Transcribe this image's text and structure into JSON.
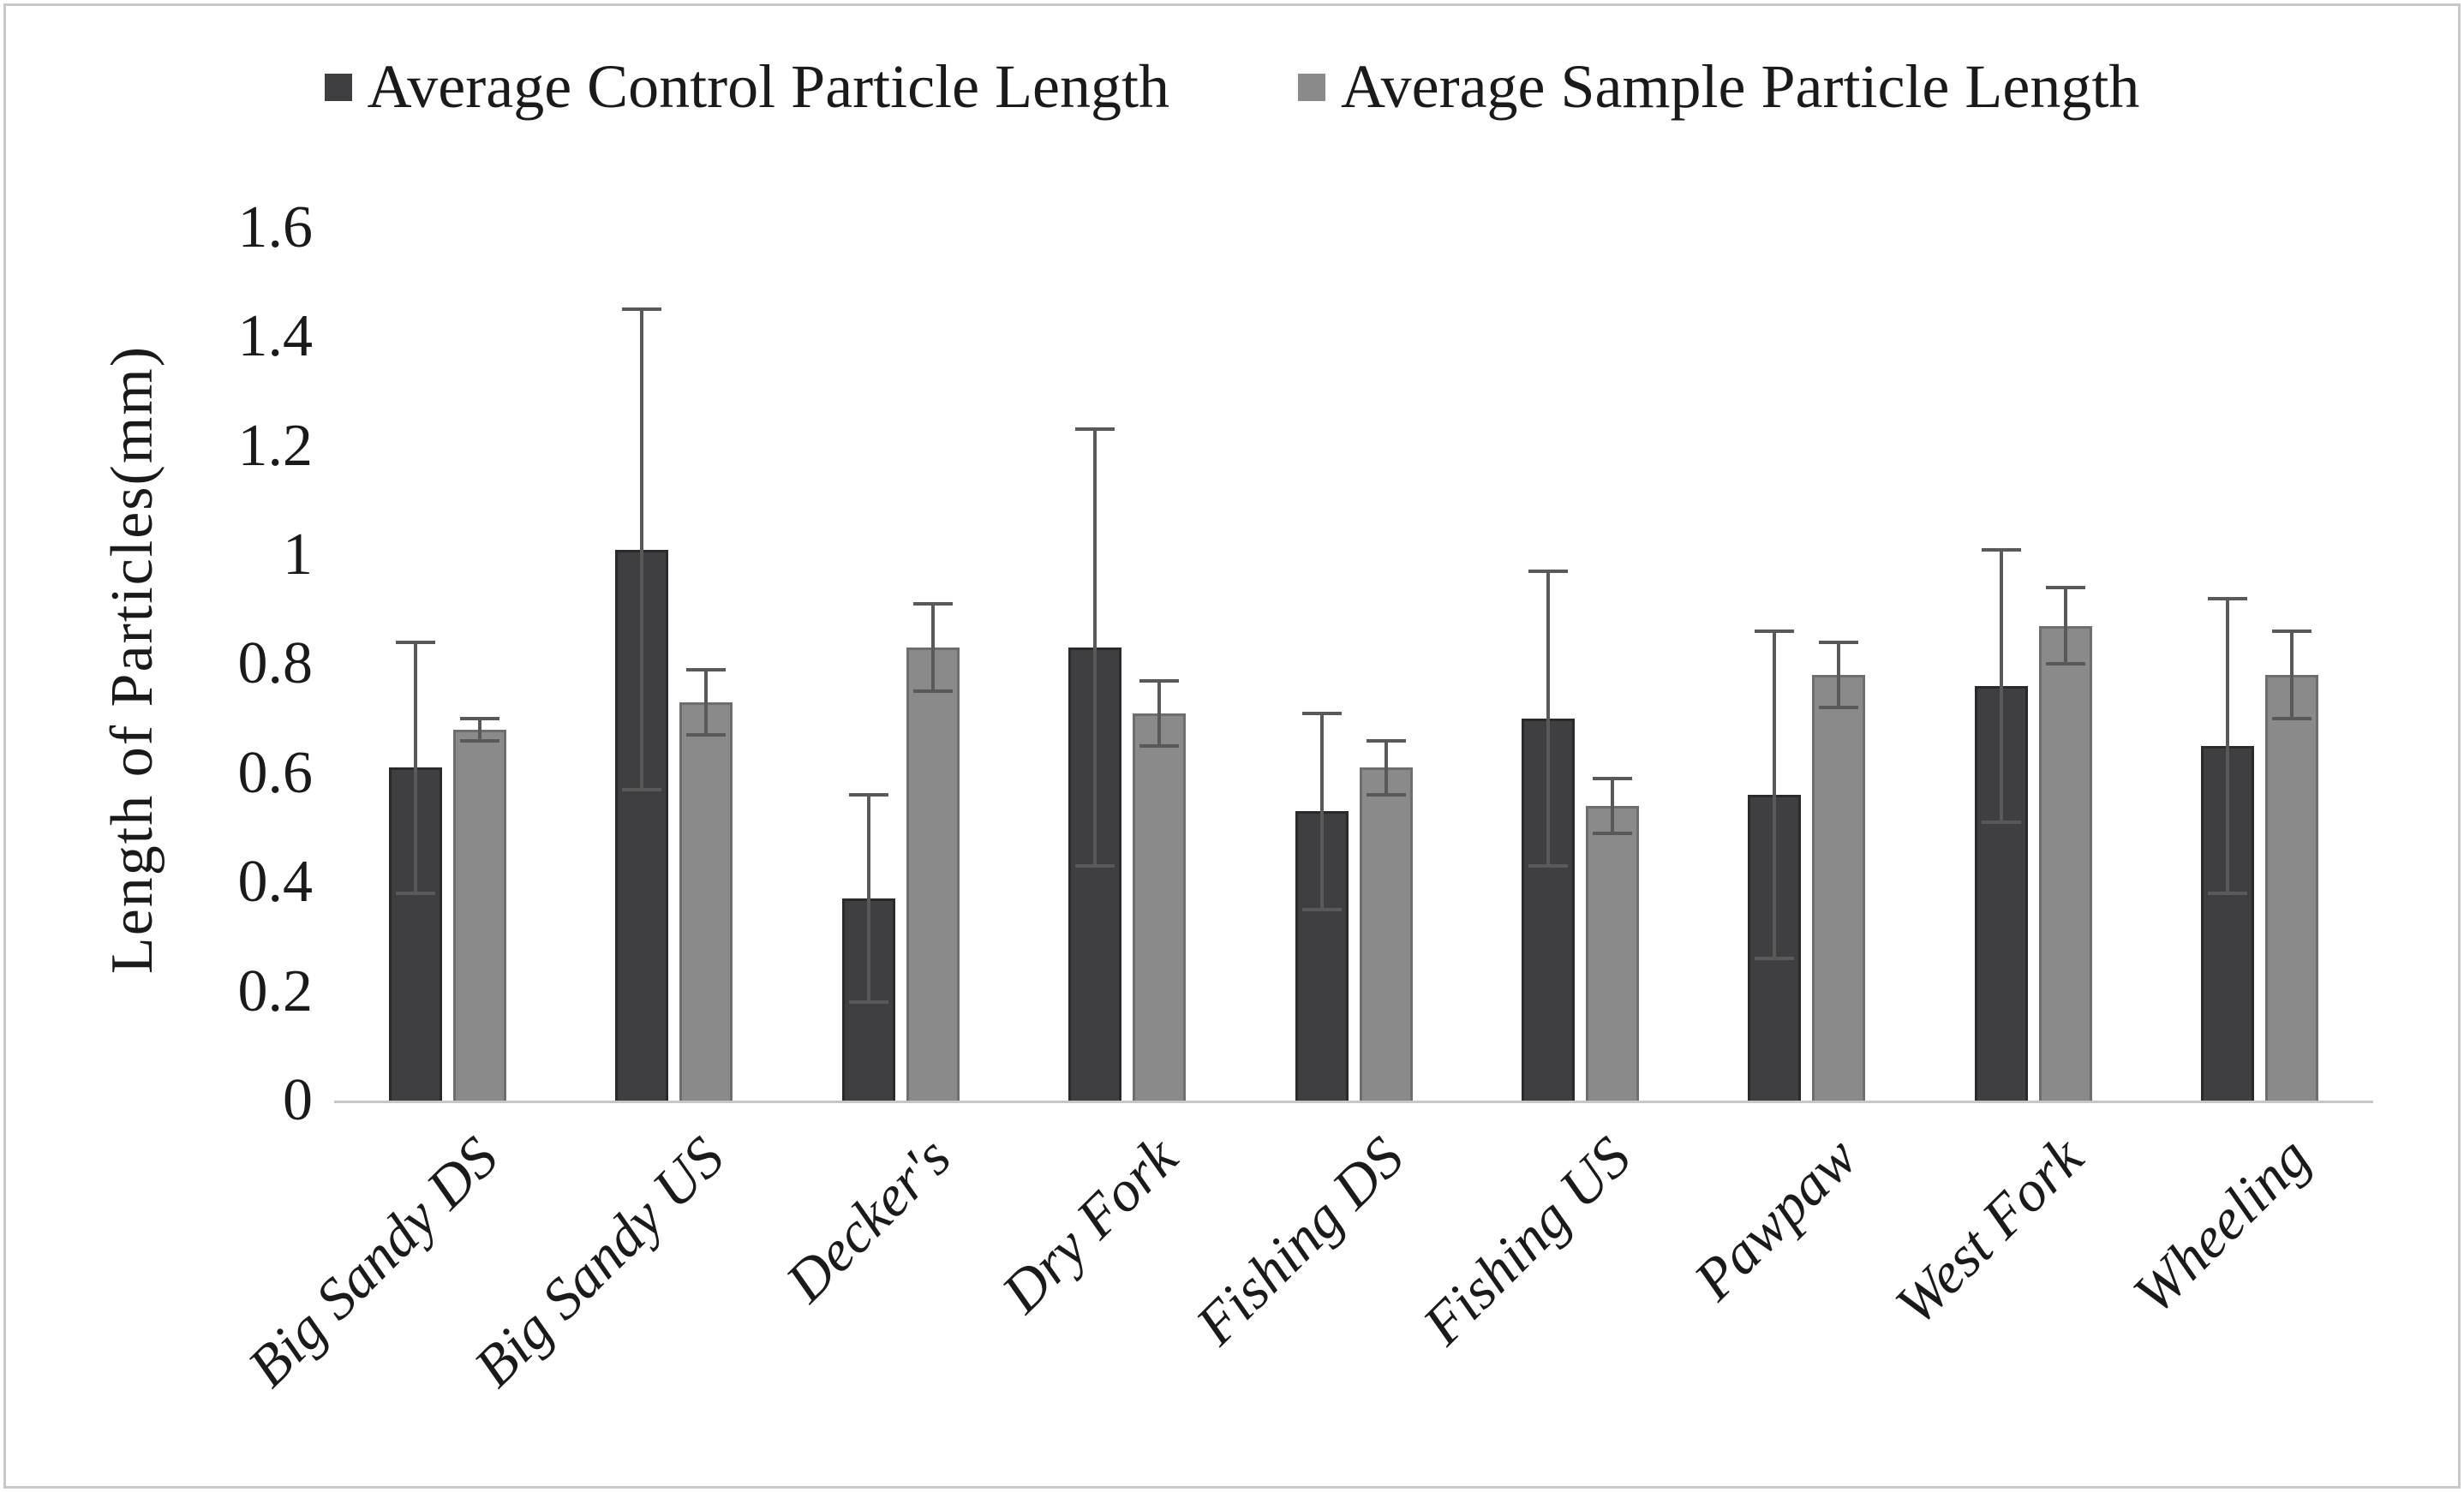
{
  "page": {
    "background": "#ffffff",
    "border_color": "#c9c9c9"
  },
  "chart_data": {
    "type": "bar",
    "title": "",
    "xlabel": "",
    "ylabel": "Length of Particles(mm)",
    "ylim": [
      0,
      1.6
    ],
    "ytick_step": 0.2,
    "ytick_labels": [
      "0",
      "0.2",
      "0.4",
      "0.6",
      "0.8",
      "1",
      "1.2",
      "1.4",
      "1.6"
    ],
    "grid": false,
    "legend_position": "top",
    "error_bars": true,
    "error_bar_color": "#595959",
    "axis_line_color": "#c6c6c6",
    "categories": [
      "Big Sandy DS",
      "Big Sandy US",
      "Decker's",
      "Dry Fork",
      "Fishing DS",
      "Fishing US",
      "Pawpaw",
      "West Fork",
      "Wheeling"
    ],
    "series": [
      {
        "name": "Average Control Particle Length",
        "color": "#3f3f41",
        "border_color": "#2a2a2c",
        "values": [
          0.61,
          1.01,
          0.37,
          0.83,
          0.53,
          0.7,
          0.56,
          0.76,
          0.65
        ],
        "errors": [
          0.23,
          0.44,
          0.19,
          0.4,
          0.18,
          0.27,
          0.3,
          0.25,
          0.27
        ]
      },
      {
        "name": "Average Sample Particle Length",
        "color": "#8a8a8a",
        "border_color": "#6e6e6e",
        "values": [
          0.68,
          0.73,
          0.83,
          0.71,
          0.61,
          0.54,
          0.78,
          0.87,
          0.78
        ],
        "errors": [
          0.02,
          0.06,
          0.08,
          0.06,
          0.05,
          0.05,
          0.06,
          0.07,
          0.08
        ]
      }
    ]
  }
}
